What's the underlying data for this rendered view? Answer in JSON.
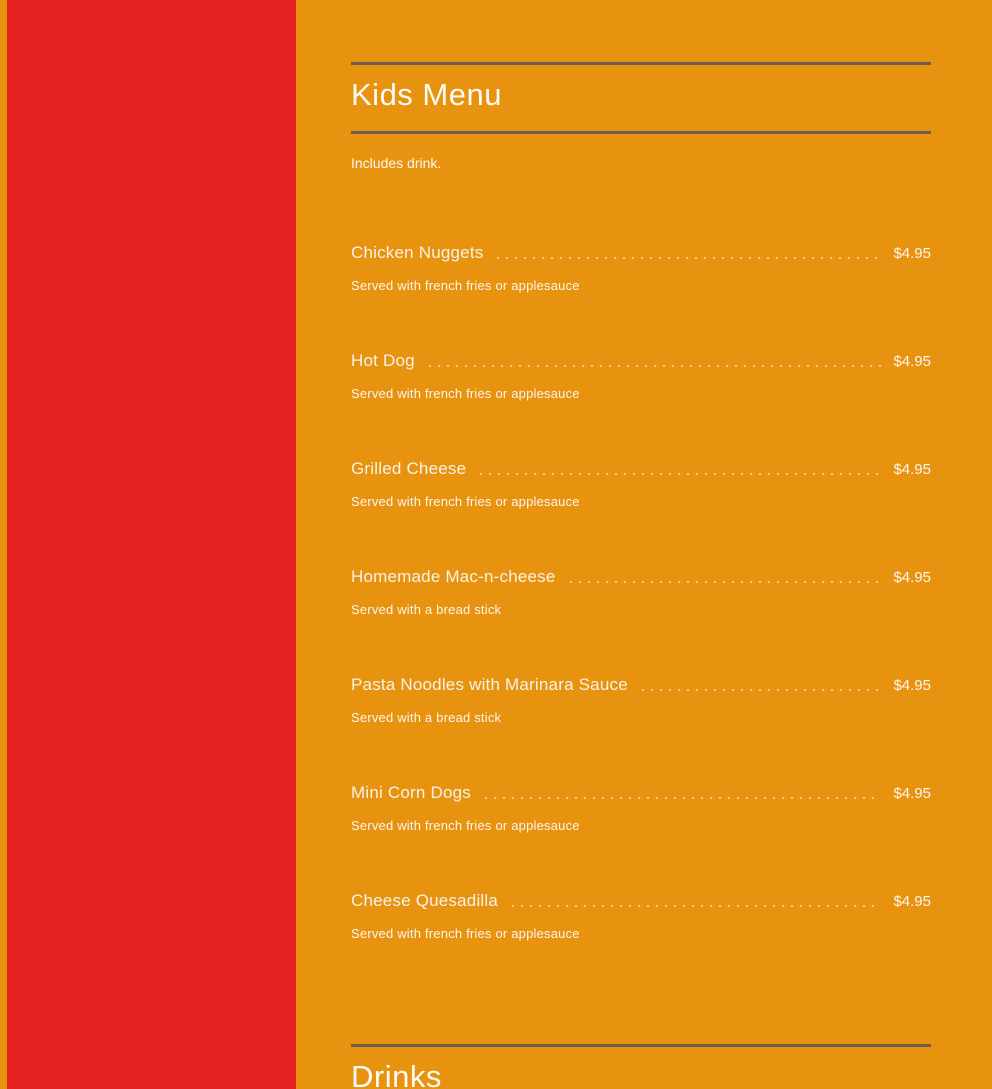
{
  "page": {
    "background_color": "#e8930f",
    "sidebar_color": "#e32221",
    "divider_color": "#6b5e4a",
    "dot_leader_color": "rgba(255,255,255,0.52)"
  },
  "kids_menu": {
    "title": "Kids Menu",
    "note": "Includes drink.",
    "items": [
      {
        "name": "Chicken Nuggets",
        "price": "$4.95",
        "description": "Served with french fries or applesauce"
      },
      {
        "name": "Hot Dog",
        "price": "$4.95",
        "description": "Served with french fries or applesauce"
      },
      {
        "name": "Grilled Cheese",
        "price": "$4.95",
        "description": "Served with french fries or applesauce"
      },
      {
        "name": "Homemade Mac-n-cheese",
        "price": "$4.95",
        "description": "Served with a bread stick"
      },
      {
        "name": "Pasta Noodles with Marinara Sauce",
        "price": "$4.95",
        "description": "Served with a bread stick"
      },
      {
        "name": "Mini Corn Dogs",
        "price": "$4.95",
        "description": "Served with french fries or applesauce"
      },
      {
        "name": "Cheese Quesadilla",
        "price": "$4.95",
        "description": "Served with french fries or applesauce"
      }
    ]
  },
  "drinks_menu": {
    "title": "Drinks"
  }
}
